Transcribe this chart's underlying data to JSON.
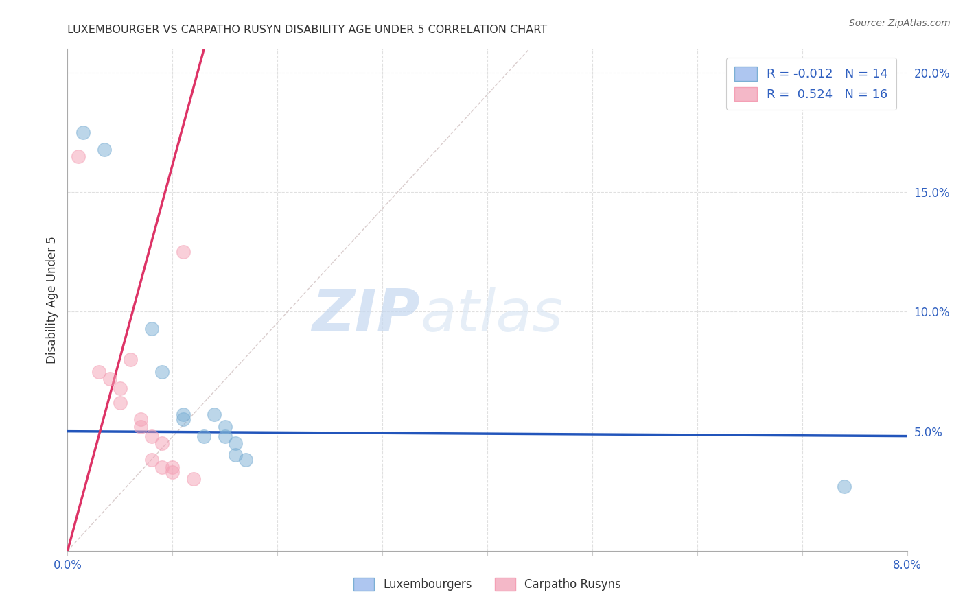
{
  "title": "LUXEMBOURGER VS CARPATHO RUSYN DISABILITY AGE UNDER 5 CORRELATION CHART",
  "source": "Source: ZipAtlas.com",
  "ylabel": "Disability Age Under 5",
  "watermark_zip": "ZIP",
  "watermark_atlas": "atlas",
  "xlim": [
    0.0,
    0.08
  ],
  "ylim": [
    0.0,
    0.21
  ],
  "blue_scatter": [
    [
      0.0015,
      0.175
    ],
    [
      0.0035,
      0.168
    ],
    [
      0.008,
      0.093
    ],
    [
      0.009,
      0.075
    ],
    [
      0.011,
      0.057
    ],
    [
      0.011,
      0.055
    ],
    [
      0.013,
      0.048
    ],
    [
      0.014,
      0.057
    ],
    [
      0.015,
      0.052
    ],
    [
      0.015,
      0.048
    ],
    [
      0.016,
      0.045
    ],
    [
      0.016,
      0.04
    ],
    [
      0.017,
      0.038
    ],
    [
      0.074,
      0.027
    ]
  ],
  "pink_scatter": [
    [
      0.001,
      0.165
    ],
    [
      0.003,
      0.075
    ],
    [
      0.004,
      0.072
    ],
    [
      0.005,
      0.068
    ],
    [
      0.005,
      0.062
    ],
    [
      0.006,
      0.08
    ],
    [
      0.007,
      0.055
    ],
    [
      0.007,
      0.052
    ],
    [
      0.008,
      0.048
    ],
    [
      0.008,
      0.038
    ],
    [
      0.009,
      0.045
    ],
    [
      0.009,
      0.035
    ],
    [
      0.01,
      0.035
    ],
    [
      0.01,
      0.033
    ],
    [
      0.011,
      0.125
    ],
    [
      0.012,
      0.03
    ]
  ],
  "blue_line_x": [
    0.0,
    0.08
  ],
  "blue_line_y": [
    0.05,
    0.048
  ],
  "pink_line_x": [
    0.0,
    0.013
  ],
  "pink_line_y": [
    0.0,
    0.21
  ],
  "diagonal_line_x": [
    0.0,
    0.044
  ],
  "diagonal_line_y": [
    0.0,
    0.21
  ],
  "bg_color": "#ffffff",
  "scatter_size": 200,
  "blue_color": "#7bafd4",
  "pink_color": "#f4a0b5",
  "blue_line_color": "#2255bb",
  "pink_line_color": "#dd3366",
  "diagonal_color": "#d0c0c0",
  "grid_color": "#e0e0e0"
}
